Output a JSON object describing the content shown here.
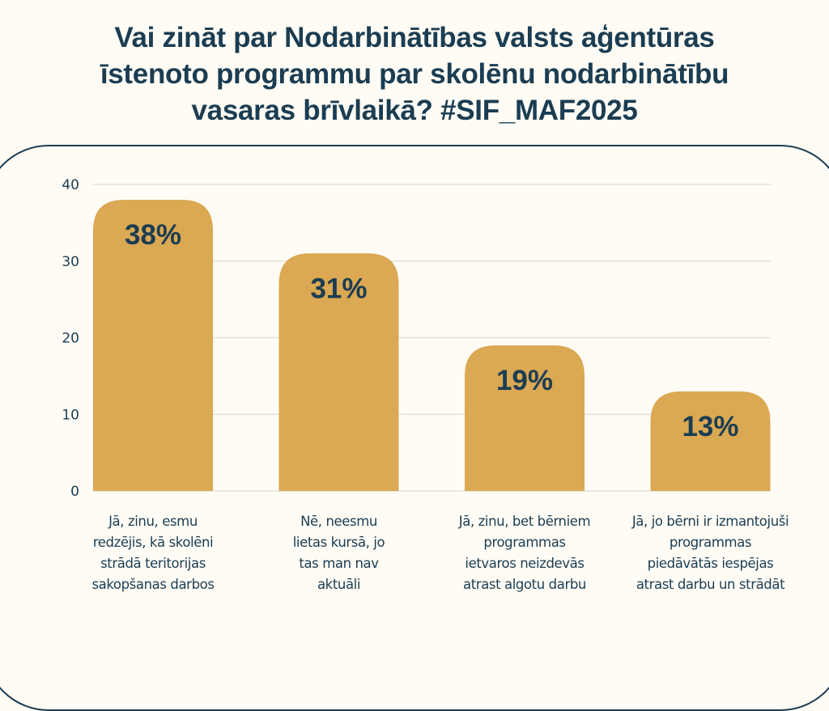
{
  "title_lines": [
    "Vai zināt par Nodarbinātības valsts aģentūras",
    "īstenoto programmu par skolēnu nodarbinātību",
    "vasaras brīvlaikā? #SIF_MAF2025"
  ],
  "colors": {
    "bar": "#dba853",
    "text": "#1b3d52",
    "grid": "#dcdcd8",
    "background": "#fffcf5"
  },
  "chart_data": {
    "type": "bar",
    "title": "Vai zināt par Nodarbinātības valsts aģentūras īstenoto programmu par skolēnu nodarbinātību vasaras brīvlaikā? #SIF_MAF2025",
    "categories": [
      "Jā, zinu, esmu redzējis, kā skolēni strādā teritorijas sakopšanas darbos",
      "Nē, neesmu lietas kursā, jo tas man nav aktuāli",
      "Jā, zinu, bet bērniem programmas ietvaros neizdevās atrast algotu darbu",
      "Jā, jo bērni ir izmantojuši programmas piedāvātās iespējas atrast darbu un strādāt"
    ],
    "category_label_lines": [
      [
        "Jā, zinu, esmu",
        "redzējis, kā skolēni",
        "strādā teritorijas",
        "sakopšanas darbos"
      ],
      [
        "Nē, neesmu",
        "lietas kursā, jo",
        "tas man nav",
        "aktuāli"
      ],
      [
        "Jā, zinu, bet bērniem",
        "programmas",
        "ietvaros neizdevās",
        "atrast algotu darbu"
      ],
      [
        "Jā, jo bērni ir izmantojuši",
        "programmas",
        "piedāvātās iespējas",
        "atrast darbu un strādāt"
      ]
    ],
    "values": [
      38,
      31,
      19,
      13
    ],
    "data_labels": [
      "38%",
      "31%",
      "19%",
      "13%"
    ],
    "xlabel": "",
    "ylabel": "",
    "ylim": [
      0,
      40
    ],
    "yticks": [
      0,
      10,
      20,
      30,
      40
    ],
    "grid": true,
    "legend": "none"
  }
}
